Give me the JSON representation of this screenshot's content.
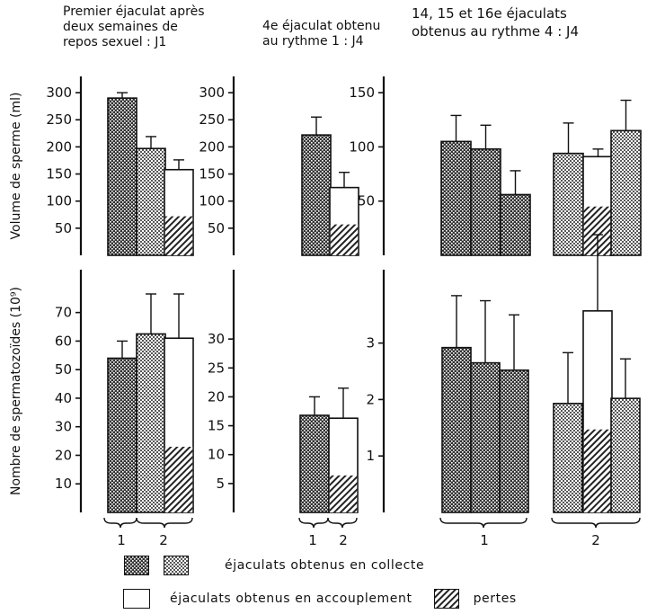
{
  "titles": {
    "col1": "Premier éjaculat après\ndeux semaines de\nrepos sexuel : J1",
    "col2": "4e éjaculat obtenu\nau rythme 1 : J4",
    "col3": "14, 15 et 16e éjaculats\nobtenus au rythme 4 : J4"
  },
  "legend": {
    "collecte": "éjaculats obtenus en collecte",
    "accouplement": "éjaculats obtenus en accouplement",
    "pertes": "pertes"
  },
  "chart_data": [
    {
      "type": "bar",
      "id": "top-left",
      "ylabel": "Volume de sperme (ml)",
      "ylim": [
        0,
        330
      ],
      "yticks": [
        50,
        100,
        150,
        200,
        250,
        300
      ],
      "groups": [
        "1",
        "2"
      ],
      "bars": [
        {
          "group": "1",
          "fill": "dark",
          "value": 290,
          "error": 10
        },
        {
          "group": "2",
          "fill": "light",
          "value": 197,
          "error": 22
        },
        {
          "group": "2",
          "fill": "white",
          "value": 158,
          "error": 18,
          "pertes": 72
        }
      ]
    },
    {
      "type": "bar",
      "id": "top-middle",
      "ylim": [
        0,
        330
      ],
      "yticks": [
        50,
        100,
        150,
        200,
        250,
        300
      ],
      "groups": [
        "1",
        "2"
      ],
      "bars": [
        {
          "group": "1",
          "fill": "dark",
          "value": 222,
          "error": 33
        },
        {
          "group": "2",
          "fill": "white",
          "value": 125,
          "error": 28,
          "pertes": 57
        }
      ]
    },
    {
      "type": "bar",
      "id": "top-right",
      "ylim": [
        0,
        165
      ],
      "yticks": [
        50,
        100,
        150
      ],
      "groups": [
        "1",
        "2"
      ],
      "bars": [
        {
          "group": "1",
          "fill": "dark",
          "value": 105,
          "error": 24
        },
        {
          "group": "1",
          "fill": "dark",
          "value": 98,
          "error": 22
        },
        {
          "group": "1",
          "fill": "dark",
          "value": 56,
          "error": 22
        },
        {
          "group": "2",
          "fill": "light",
          "value": 94,
          "error": 28
        },
        {
          "group": "2",
          "fill": "white",
          "value": 91,
          "error": 7,
          "pertes": 45
        },
        {
          "group": "2",
          "fill": "light",
          "value": 115,
          "error": 28
        }
      ]
    },
    {
      "type": "bar",
      "id": "bottom-left",
      "ylabel": "Nombre de spermatozoïdes (10⁹)",
      "ylim": [
        0,
        85
      ],
      "yticks": [
        10,
        20,
        30,
        40,
        50,
        60,
        70
      ],
      "groups": [
        "1",
        "2"
      ],
      "bars": [
        {
          "group": "1",
          "fill": "dark",
          "value": 54,
          "error": 6
        },
        {
          "group": "2",
          "fill": "light",
          "value": 62.5,
          "error": 14
        },
        {
          "group": "2",
          "fill": "white",
          "value": 61,
          "error": 15.5,
          "pertes": 23
        }
      ]
    },
    {
      "type": "bar",
      "id": "bottom-middle",
      "ylim": [
        0,
        42
      ],
      "yticks": [
        5,
        10,
        15,
        20,
        25,
        30
      ],
      "groups": [
        "1",
        "2"
      ],
      "bars": [
        {
          "group": "1",
          "fill": "dark",
          "value": 16.8,
          "error": 3.2
        },
        {
          "group": "2",
          "fill": "white",
          "value": 16.3,
          "error": 5.2,
          "pertes": 6.4
        }
      ]
    },
    {
      "type": "bar",
      "id": "bottom-right",
      "ylim": [
        0,
        4.3
      ],
      "yticks": [
        1,
        2,
        3
      ],
      "groups": [
        "1",
        "2"
      ],
      "bars": [
        {
          "group": "1",
          "fill": "dark",
          "value": 2.92,
          "error": 0.92
        },
        {
          "group": "1",
          "fill": "dark",
          "value": 2.65,
          "error": 1.1
        },
        {
          "group": "1",
          "fill": "dark",
          "value": 2.52,
          "error": 0.98
        },
        {
          "group": "2",
          "fill": "light",
          "value": 1.93,
          "error": 0.9
        },
        {
          "group": "2",
          "fill": "white",
          "value": 3.57,
          "error": 1.35,
          "pertes": 1.47
        },
        {
          "group": "2",
          "fill": "light",
          "value": 2.02,
          "error": 0.7
        }
      ]
    }
  ]
}
